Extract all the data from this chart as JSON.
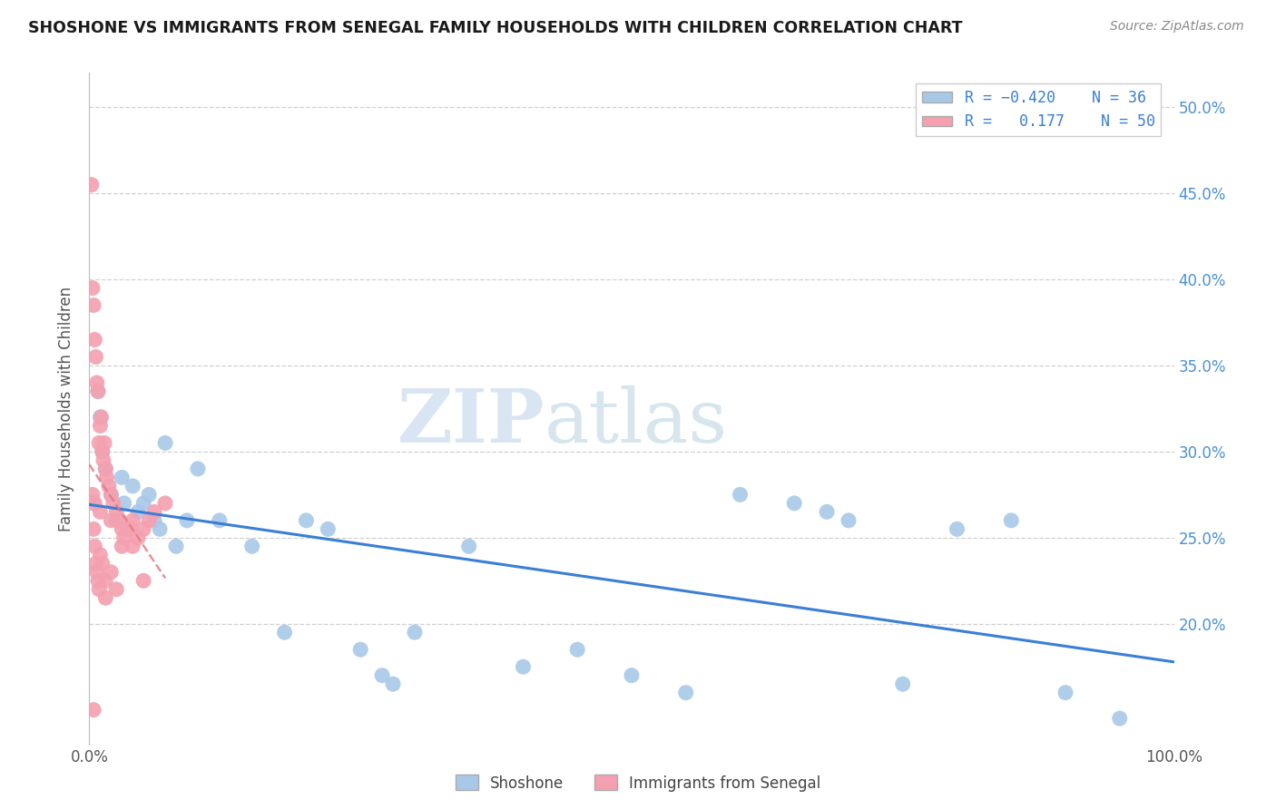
{
  "title": "SHOSHONE VS IMMIGRANTS FROM SENEGAL FAMILY HOUSEHOLDS WITH CHILDREN CORRELATION CHART",
  "source": "Source: ZipAtlas.com",
  "ylabel": "Family Households with Children",
  "shoshone_color": "#a8c8e8",
  "senegal_color": "#f4a0b0",
  "shoshone_line_color": "#3a7fd5",
  "senegal_line_color": "#e07880",
  "watermark_zip": "ZIP",
  "watermark_atlas": "atlas",
  "shoshone_points": [
    [
      0.3,
      27.0
    ],
    [
      0.8,
      33.5
    ],
    [
      1.0,
      32.0
    ],
    [
      1.2,
      30.0
    ],
    [
      1.5,
      29.0
    ],
    [
      2.0,
      27.5
    ],
    [
      2.5,
      26.0
    ],
    [
      3.0,
      28.5
    ],
    [
      3.2,
      27.0
    ],
    [
      3.5,
      25.5
    ],
    [
      4.0,
      28.0
    ],
    [
      4.5,
      26.5
    ],
    [
      5.0,
      27.0
    ],
    [
      5.5,
      27.5
    ],
    [
      6.0,
      26.0
    ],
    [
      6.5,
      25.5
    ],
    [
      7.0,
      30.5
    ],
    [
      8.0,
      24.5
    ],
    [
      9.0,
      26.0
    ],
    [
      10.0,
      29.0
    ],
    [
      12.0,
      26.0
    ],
    [
      15.0,
      24.5
    ],
    [
      18.0,
      19.5
    ],
    [
      20.0,
      26.0
    ],
    [
      22.0,
      25.5
    ],
    [
      25.0,
      18.5
    ],
    [
      27.0,
      17.0
    ],
    [
      28.0,
      16.5
    ],
    [
      30.0,
      19.5
    ],
    [
      35.0,
      24.5
    ],
    [
      40.0,
      17.5
    ],
    [
      45.0,
      18.5
    ],
    [
      50.0,
      17.0
    ],
    [
      55.0,
      16.0
    ],
    [
      60.0,
      27.5
    ],
    [
      65.0,
      27.0
    ],
    [
      68.0,
      26.5
    ],
    [
      70.0,
      26.0
    ],
    [
      75.0,
      16.5
    ],
    [
      80.0,
      25.5
    ],
    [
      85.0,
      26.0
    ],
    [
      90.0,
      16.0
    ],
    [
      95.0,
      14.5
    ]
  ],
  "senegal_points": [
    [
      0.2,
      45.5
    ],
    [
      0.3,
      39.5
    ],
    [
      0.4,
      38.5
    ],
    [
      0.5,
      36.5
    ],
    [
      0.6,
      35.5
    ],
    [
      0.7,
      34.0
    ],
    [
      0.8,
      33.5
    ],
    [
      0.9,
      30.5
    ],
    [
      1.0,
      31.5
    ],
    [
      1.1,
      32.0
    ],
    [
      1.2,
      30.0
    ],
    [
      1.3,
      29.5
    ],
    [
      1.4,
      30.5
    ],
    [
      1.5,
      29.0
    ],
    [
      1.6,
      28.5
    ],
    [
      1.8,
      28.0
    ],
    [
      2.0,
      27.5
    ],
    [
      2.2,
      27.0
    ],
    [
      2.5,
      26.5
    ],
    [
      2.8,
      26.0
    ],
    [
      3.0,
      25.5
    ],
    [
      3.2,
      25.0
    ],
    [
      3.5,
      25.5
    ],
    [
      3.8,
      25.5
    ],
    [
      4.0,
      24.5
    ],
    [
      4.5,
      25.0
    ],
    [
      5.0,
      25.5
    ],
    [
      5.5,
      26.0
    ],
    [
      6.0,
      26.5
    ],
    [
      7.0,
      27.0
    ],
    [
      0.4,
      25.5
    ],
    [
      0.5,
      24.5
    ],
    [
      0.6,
      23.5
    ],
    [
      0.7,
      23.0
    ],
    [
      0.8,
      22.5
    ],
    [
      0.9,
      22.0
    ],
    [
      1.0,
      24.0
    ],
    [
      1.2,
      23.5
    ],
    [
      1.5,
      22.5
    ],
    [
      2.0,
      23.0
    ],
    [
      2.5,
      22.0
    ],
    [
      0.3,
      27.5
    ],
    [
      0.5,
      27.0
    ],
    [
      1.0,
      26.5
    ],
    [
      2.0,
      26.0
    ],
    [
      3.0,
      24.5
    ],
    [
      1.5,
      21.5
    ],
    [
      0.4,
      15.0
    ],
    [
      4.0,
      26.0
    ],
    [
      5.0,
      22.5
    ]
  ],
  "xlim": [
    0,
    100
  ],
  "ylim": [
    13,
    52
  ],
  "ytick_vals": [
    20,
    25,
    30,
    35,
    40,
    45,
    50
  ],
  "bg_color": "#ffffff",
  "grid_color": "#d0d0d0"
}
